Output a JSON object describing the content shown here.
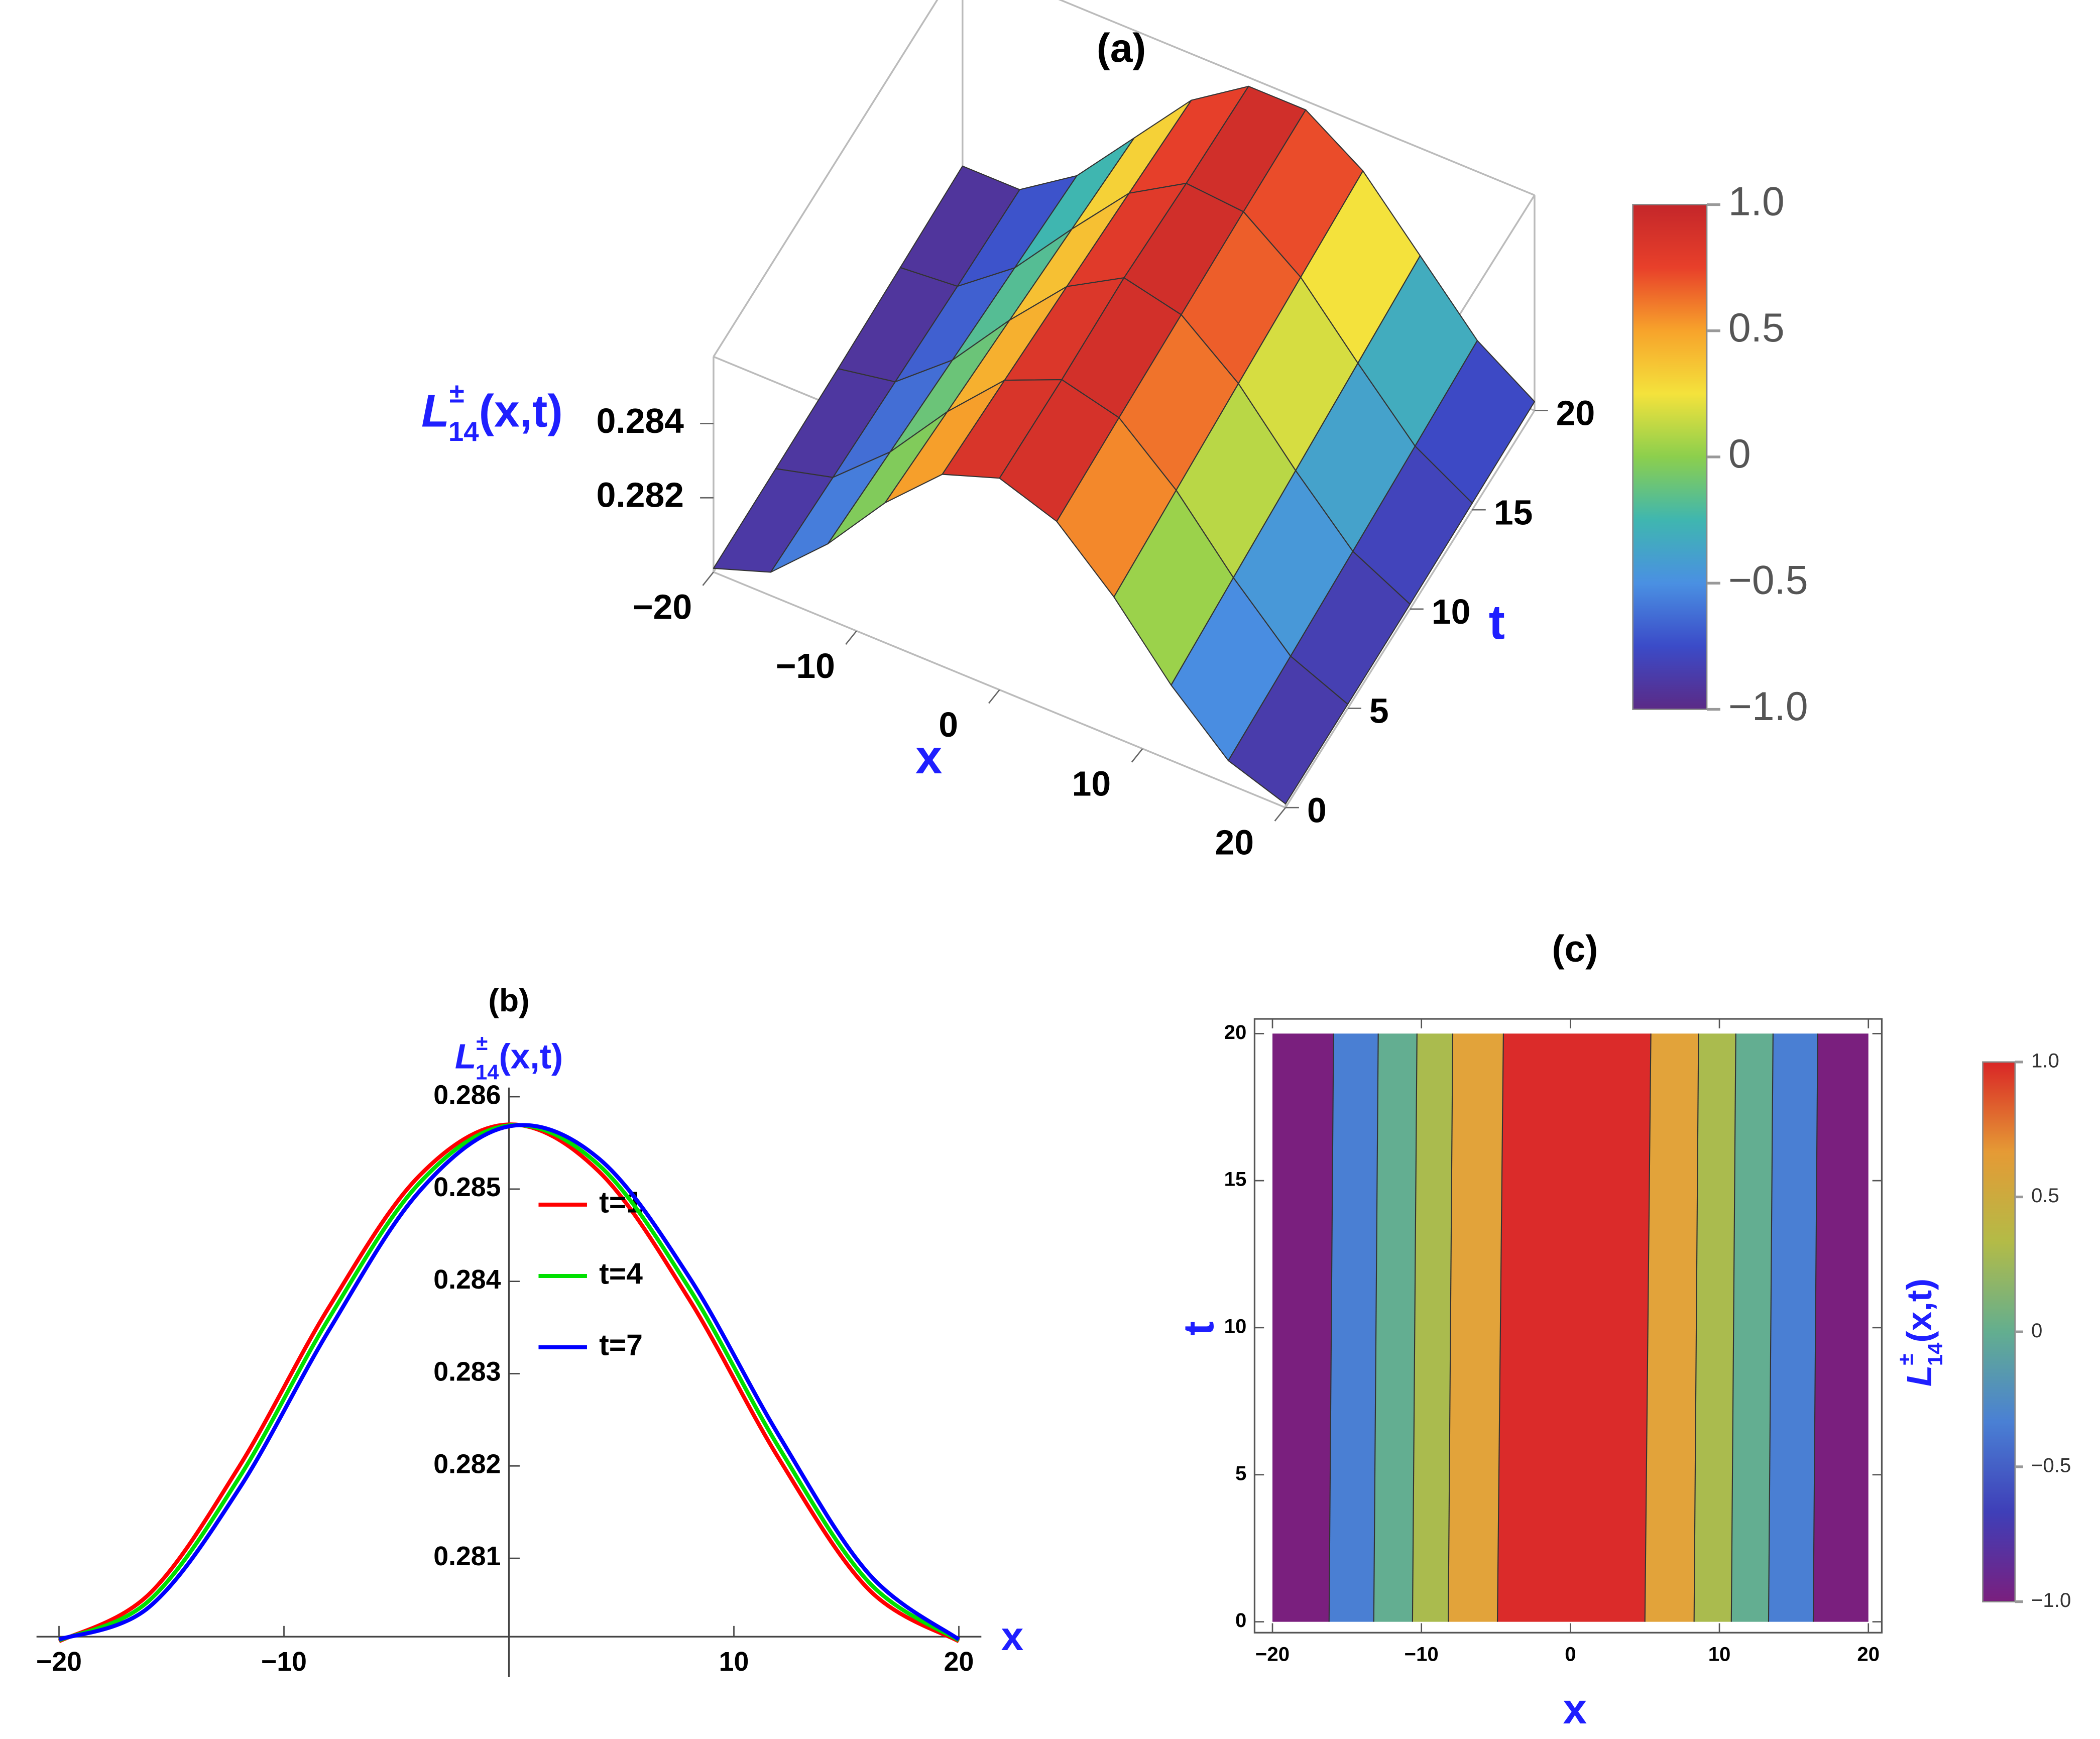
{
  "chart_data": [
    {
      "type": "surface",
      "title": "(a)",
      "xlabel": "x",
      "ylabel": "t",
      "zlabel": {
        "base": "L",
        "sup": "±",
        "sub": "14",
        "args": "(x,t)"
      },
      "x": [
        -20,
        -16,
        -12,
        -8,
        -4,
        0,
        4,
        8,
        12,
        16,
        20
      ],
      "t": [
        0,
        5,
        10,
        15,
        20
      ],
      "z": [
        [
          0.2801,
          0.28063,
          0.28203,
          0.28377,
          0.28517,
          0.2857,
          0.28517,
          0.28377,
          0.28203,
          0.28063,
          0.2801
        ],
        [
          0.28011,
          0.28051,
          0.28183,
          0.28355,
          0.28503,
          0.28568,
          0.28529,
          0.28397,
          0.28225,
          0.28077,
          0.28011
        ],
        [
          0.28013,
          0.28041,
          0.28163,
          0.28334,
          0.28488,
          0.28575,
          0.28539,
          0.28417,
          0.28246,
          0.28092,
          0.28013
        ],
        [
          0.28018,
          0.28031,
          0.28144,
          0.28312,
          0.28472,
          0.28562,
          0.28549,
          0.28436,
          0.28268,
          0.28108,
          0.28018
        ],
        [
          0.28024,
          0.28024,
          0.28125,
          0.2829,
          0.28455,
          0.28556,
          0.28556,
          0.28455,
          0.2829,
          0.28125,
          0.28024
        ]
      ],
      "xlim": [
        -20,
        20
      ],
      "ylim": [
        0,
        20
      ],
      "zlim": [
        0.28,
        0.2858
      ],
      "xticks": [
        {
          "value": -20,
          "label": "−20"
        },
        {
          "value": -10,
          "label": "−10"
        },
        0,
        10,
        20
      ],
      "yticks": [
        0,
        5,
        10,
        15,
        20
      ],
      "zticks": [
        0.282,
        0.284
      ],
      "colorbar_lim": [
        -1,
        1
      ],
      "colorbar_ticks": [
        {
          "value": 1,
          "label": "1.0"
        },
        0.5,
        0,
        {
          "value": -0.5,
          "label": "−0.5"
        },
        {
          "value": -1,
          "label": "−1.0"
        }
      ],
      "colormap": [
        "#5b2a86",
        "#3b4bc8",
        "#4a90e2",
        "#3fb6b0",
        "#8ccf4d",
        "#f4e23c",
        "#f7a32b",
        "#e8402a",
        "#c4262a"
      ]
    },
    {
      "type": "line",
      "title": "(b)",
      "xlabel": "x",
      "ylabel": {
        "base": "L",
        "sup": "±",
        "sub": "14",
        "args": "(x,t)"
      },
      "x": [
        -20,
        -16,
        -12,
        -8,
        -4,
        0,
        4,
        8,
        12,
        16,
        20
      ],
      "series": [
        {
          "name": "t=1",
          "color": "#ff0000",
          "values": [
            0.2801,
            0.28061,
            0.28199,
            0.28372,
            0.28514,
            0.2857,
            0.28519,
            0.28381,
            0.28208,
            0.28066,
            0.2801
          ]
        },
        {
          "name": "t=4",
          "color": "#00e000",
          "values": [
            0.28011,
            0.28054,
            0.28187,
            0.2836,
            0.28506,
            0.28569,
            0.28526,
            0.28393,
            0.2822,
            0.28074,
            0.28011
          ]
        },
        {
          "name": "t=7",
          "color": "#0000ff",
          "values": [
            0.28012,
            0.28047,
            0.28175,
            0.28347,
            0.28497,
            0.28568,
            0.28533,
            0.28405,
            0.28233,
            0.28083,
            0.28012
          ]
        }
      ],
      "xlim": [
        -21,
        21
      ],
      "ylim": [
        0.28015,
        0.2861
      ],
      "xticks": [
        {
          "value": -20,
          "label": "−20"
        },
        {
          "value": -10,
          "label": "−10"
        },
        10,
        20
      ],
      "yticks": [
        0.281,
        0.282,
        0.283,
        0.284,
        0.285,
        0.286
      ],
      "legend": "center"
    },
    {
      "type": "contour",
      "title": "(c)",
      "xlabel": "x",
      "ylabel": "t",
      "colorbar_label": {
        "base": "L",
        "sup": "±",
        "sub": "14",
        "args": "(x,t)"
      },
      "region_x": [
        -20,
        20
      ],
      "region_t": [
        0,
        20
      ],
      "boundary_x_bottom": [
        -16.2,
        -13.2,
        -10.6,
        -8.2,
        -4.9,
        5.0,
        8.3,
        10.8,
        13.3,
        16.3
      ],
      "boundary_x_top": [
        -15.9,
        -12.9,
        -10.3,
        -7.9,
        -4.5,
        5.4,
        8.6,
        11.1,
        13.6,
        16.6
      ],
      "band_colors": [
        "#7a1f7e",
        "#4a7fd3",
        "#63ae91",
        "#aabb4e",
        "#e2a33a",
        "#db2b2a",
        "#e2a33a",
        "#aabb4e",
        "#63ae91",
        "#4a7fd3",
        "#7a1f7e"
      ],
      "xlim": [
        -21.2,
        20.9
      ],
      "ylim": [
        -0.37,
        20.5
      ],
      "xticks": [
        {
          "value": -20,
          "label": "−20"
        },
        {
          "value": -10,
          "label": "−10"
        },
        0,
        10,
        20
      ],
      "yticks": [
        0,
        5,
        10,
        15,
        20
      ],
      "colorbar_lim": [
        -1,
        1
      ],
      "colorbar_ticks": [
        {
          "value": 1,
          "label": "1.0"
        },
        0.5,
        0,
        {
          "value": -0.5,
          "label": "−0.5"
        },
        {
          "value": -1,
          "label": "−1.0"
        }
      ],
      "colormap": [
        "#7a1f7e",
        "#3f3fb8",
        "#4a80d4",
        "#63ae8f",
        "#b3bb47",
        "#e59a35",
        "#d92626"
      ]
    }
  ]
}
